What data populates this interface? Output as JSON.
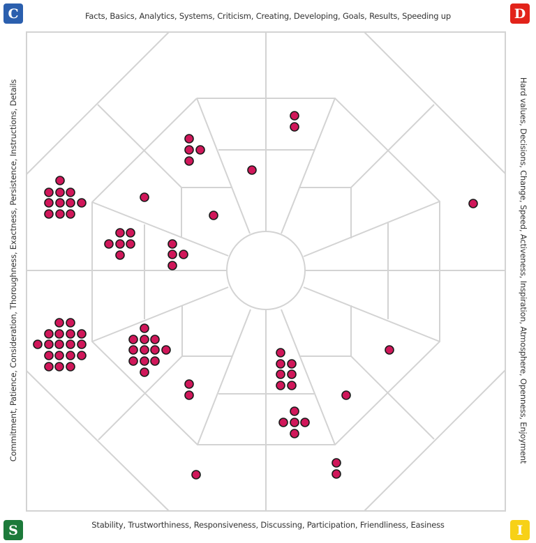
{
  "corners": {
    "c": {
      "letter": "C",
      "color": "#2b5fae"
    },
    "d": {
      "letter": "D",
      "color": "#e2231a"
    },
    "s": {
      "letter": "S",
      "color": "#1c7a3a"
    },
    "i": {
      "letter": "I",
      "color": "#f7d117"
    }
  },
  "labels": {
    "top": "Facts, Basics, Analytics, Systems, Criticism, Creating, Developing, Goals, Results, Speeding up",
    "right": "Hard values, Decisions, Change, Speed, Activeness, Inspiration, Atmosphere, Openness, Enjoyment",
    "bottom": "Stability, Trustworthiness, Responsiveness, Discussing, Participation, Friendliness, Easiness",
    "left": "Commitment, Patience, Consideration, Thoroughness, Exactness, Persistence, Instructions, Details"
  },
  "dot_color": "#d0175a",
  "dot_groups": [
    {
      "quadrant": "C",
      "count": 11
    },
    {
      "quadrant": "C",
      "count": 6
    },
    {
      "quadrant": "C",
      "count": 4
    },
    {
      "quadrant": "C",
      "count": 1
    },
    {
      "quadrant": "C",
      "count": 1
    },
    {
      "quadrant": "C",
      "count": 4
    },
    {
      "quadrant": "C",
      "count": 1
    },
    {
      "quadrant": "D",
      "count": 2
    },
    {
      "quadrant": "D",
      "count": 1
    },
    {
      "quadrant": "S",
      "count": 18
    },
    {
      "quadrant": "S",
      "count": 12
    },
    {
      "quadrant": "S",
      "count": 2
    },
    {
      "quadrant": "S",
      "count": 1
    },
    {
      "quadrant": "I",
      "count": 7
    },
    {
      "quadrant": "I",
      "count": 5
    },
    {
      "quadrant": "I",
      "count": 1
    },
    {
      "quadrant": "I",
      "count": 1
    },
    {
      "quadrant": "I",
      "count": 2
    }
  ]
}
